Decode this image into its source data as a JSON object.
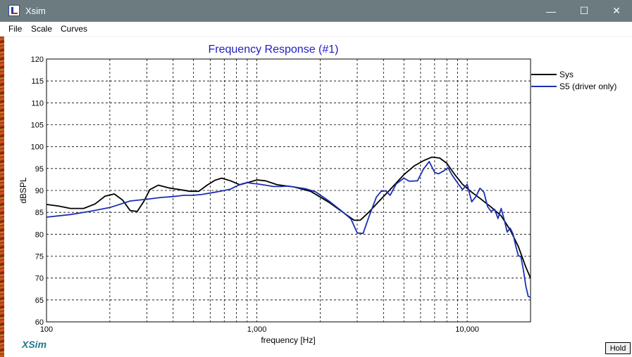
{
  "window": {
    "title": "Xsim",
    "minimize_glyph": "—",
    "maximize_glyph": "☐",
    "close_glyph": "✕",
    "icon": "app-logo-icon"
  },
  "menu": {
    "items": [
      "File",
      "Scale",
      "Curves"
    ]
  },
  "hold_label": "Hold",
  "brand_label": "XSim",
  "colors": {
    "title": "#2020c0",
    "brand": "#1e7a8c",
    "sys": "#000000",
    "s5": "#1c2fb4",
    "titlebar": "#6b7b80"
  },
  "chart_data": {
    "type": "line",
    "title": "Frequency Response (#1)",
    "xlabel": "frequency [Hz]",
    "ylabel": "dBSPL",
    "xscale": "log",
    "xlim": [
      100,
      20000
    ],
    "ylim": [
      60,
      120
    ],
    "grid": true,
    "legend_position": "right",
    "yticks": [
      60,
      65,
      70,
      75,
      80,
      85,
      90,
      95,
      100,
      105,
      110,
      115,
      120
    ],
    "xticks": [
      {
        "value": 100,
        "label": "100"
      },
      {
        "value": 1000,
        "label": "1,000"
      },
      {
        "value": 10000,
        "label": "10,000"
      }
    ],
    "series": [
      {
        "name": "Sys",
        "color": "#000000",
        "x": [
          100,
          115,
          130,
          150,
          170,
          190,
          210,
          230,
          250,
          270,
          290,
          310,
          340,
          380,
          430,
          480,
          530,
          580,
          630,
          680,
          750,
          830,
          920,
          1000,
          1100,
          1250,
          1500,
          1800,
          2200,
          2600,
          2900,
          3100,
          3400,
          3800,
          4300,
          5000,
          5600,
          6200,
          6800,
          7400,
          8000,
          8700,
          9500,
          10500,
          11500,
          13000,
          14500,
          16000,
          17500,
          19000,
          20000
        ],
        "y": [
          86.8,
          86.4,
          85.9,
          85.9,
          86.9,
          88.7,
          89.2,
          87.8,
          85.4,
          85.2,
          87.5,
          90.2,
          91.2,
          90.6,
          90.2,
          89.8,
          89.8,
          91.2,
          92.3,
          92.8,
          92.2,
          91.3,
          91.9,
          92.4,
          92.2,
          91.3,
          90.8,
          89.8,
          87.3,
          84.8,
          83.2,
          83.2,
          85.0,
          87.5,
          90.2,
          93.6,
          95.6,
          96.8,
          97.6,
          97.4,
          96.2,
          93.7,
          91.4,
          89.6,
          88.2,
          86.2,
          84.2,
          81.0,
          77.2,
          72.5,
          70.0
        ]
      },
      {
        "name": "S5 (driver only)",
        "color": "#1c2fb4",
        "x": [
          100,
          130,
          160,
          200,
          250,
          300,
          350,
          400,
          450,
          500,
          550,
          600,
          650,
          700,
          750,
          800,
          850,
          900,
          950,
          1000,
          1100,
          1200,
          1300,
          1400,
          1500,
          1700,
          1900,
          2200,
          2500,
          2800,
          3000,
          3200,
          3400,
          3700,
          3900,
          4100,
          4300,
          4600,
          5000,
          5300,
          5800,
          6200,
          6600,
          7000,
          7300,
          7700,
          8100,
          8500,
          9000,
          9500,
          10000,
          10500,
          11000,
          11500,
          12000,
          12500,
          13000,
          13500,
          14000,
          14500,
          15000,
          15500,
          16000,
          16500,
          17000,
          17500,
          18000,
          18500,
          19000,
          19500,
          20000
        ],
        "y": [
          83.9,
          84.5,
          85.2,
          86.1,
          87.6,
          88.0,
          88.4,
          88.6,
          88.9,
          88.9,
          89.1,
          89.4,
          89.7,
          90.0,
          90.3,
          91.0,
          91.5,
          91.8,
          91.6,
          91.5,
          91.2,
          90.9,
          90.9,
          91.0,
          90.8,
          90.4,
          89.7,
          87.6,
          85.5,
          83.5,
          80.3,
          80.2,
          83.8,
          88.5,
          89.8,
          89.9,
          88.9,
          91.5,
          92.8,
          92.1,
          92.2,
          94.9,
          96.6,
          94.1,
          93.8,
          94.4,
          95.2,
          93.4,
          91.7,
          90.2,
          91.4,
          87.4,
          88.6,
          90.5,
          89.6,
          86.3,
          85.2,
          85.7,
          83.6,
          85.9,
          83.3,
          80.5,
          81.4,
          80.1,
          77.4,
          75.1,
          74.9,
          71.8,
          68.2,
          65.8,
          65.6
        ]
      }
    ]
  }
}
